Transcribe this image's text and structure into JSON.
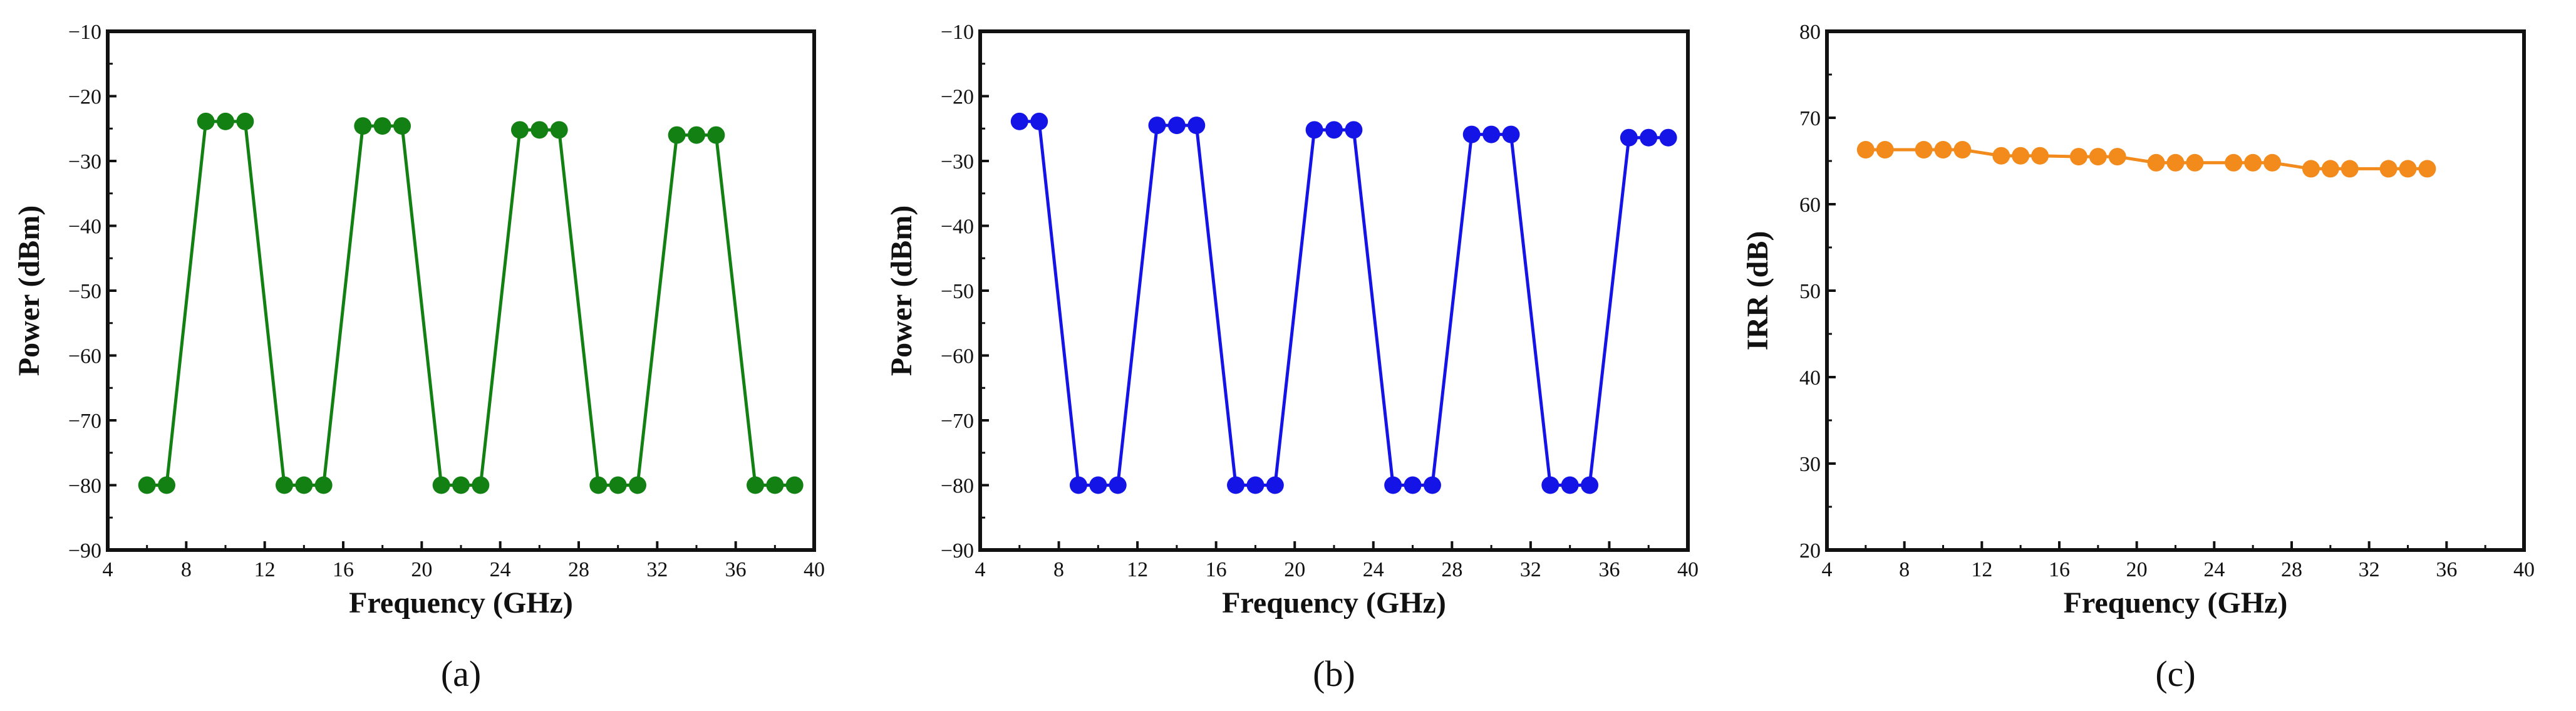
{
  "chart_data": [
    {
      "type": "line",
      "caption": "(a)",
      "xlabel": "Frequency (GHz)",
      "ylabel": "Power (dBm)",
      "xlim": [
        4,
        40
      ],
      "ylim": [
        -90,
        -10
      ],
      "xticks": [
        4,
        8,
        12,
        16,
        20,
        24,
        28,
        32,
        36,
        40
      ],
      "yticks": [
        -90,
        -80,
        -70,
        -60,
        -50,
        -40,
        -30,
        -20,
        -10
      ],
      "xtick_labels": [
        "4",
        "8",
        "12",
        "16",
        "20",
        "24",
        "28",
        "32",
        "36",
        "40"
      ],
      "ytick_labels": [
        "−90",
        "−80",
        "−70",
        "−60",
        "−50",
        "−40",
        "−30",
        "−20",
        "−10"
      ],
      "color": "#138013",
      "marker": "circle",
      "grid": false,
      "series": [
        {
          "x": [
            6,
            7,
            9,
            10,
            11,
            13,
            14,
            15,
            17,
            18,
            19,
            21,
            22,
            23,
            25,
            26,
            27,
            29,
            30,
            31,
            33,
            34,
            35,
            37,
            38,
            39
          ],
          "values": [
            -80,
            -80,
            -23.9,
            -23.9,
            -23.9,
            -80,
            -80,
            -80,
            -24.6,
            -24.6,
            -24.6,
            -80,
            -80,
            -80,
            -25.2,
            -25.2,
            -25.2,
            -80,
            -80,
            -80,
            -26.0,
            -26.0,
            -26.0,
            -80,
            -80,
            -80
          ]
        }
      ]
    },
    {
      "type": "line",
      "caption": "(b)",
      "xlabel": "Frequency (GHz)",
      "ylabel": "Power (dBm)",
      "xlim": [
        4,
        40
      ],
      "ylim": [
        -90,
        -10
      ],
      "xticks": [
        4,
        8,
        12,
        16,
        20,
        24,
        28,
        32,
        36,
        40
      ],
      "yticks": [
        -90,
        -80,
        -70,
        -60,
        -50,
        -40,
        -30,
        -20,
        -10
      ],
      "xtick_labels": [
        "4",
        "8",
        "12",
        "16",
        "20",
        "24",
        "28",
        "32",
        "36",
        "40"
      ],
      "ytick_labels": [
        "−90",
        "−80",
        "−70",
        "−60",
        "−50",
        "−40",
        "−30",
        "−20",
        "−10"
      ],
      "color": "#1414e6",
      "marker": "circle",
      "grid": false,
      "series": [
        {
          "x": [
            6,
            7,
            9,
            10,
            11,
            13,
            14,
            15,
            17,
            18,
            19,
            21,
            22,
            23,
            25,
            26,
            27,
            29,
            30,
            31,
            33,
            34,
            35,
            37,
            38,
            39
          ],
          "values": [
            -23.9,
            -23.9,
            -80,
            -80,
            -80,
            -24.5,
            -24.5,
            -24.5,
            -80,
            -80,
            -80,
            -25.2,
            -25.2,
            -25.2,
            -80,
            -80,
            -80,
            -25.9,
            -25.9,
            -25.9,
            -80,
            -80,
            -80,
            -26.4,
            -26.4,
            -26.4
          ]
        }
      ]
    },
    {
      "type": "line",
      "caption": "(c)",
      "xlabel": "Frequency (GHz)",
      "ylabel": "IRR (dB)",
      "xlim": [
        4,
        40
      ],
      "ylim": [
        20,
        80
      ],
      "xticks": [
        4,
        8,
        12,
        16,
        20,
        24,
        28,
        32,
        36,
        40
      ],
      "yticks": [
        20,
        30,
        40,
        50,
        60,
        70,
        80
      ],
      "xtick_labels": [
        "4",
        "8",
        "12",
        "16",
        "20",
        "24",
        "28",
        "32",
        "36",
        "40"
      ],
      "ytick_labels": [
        "20",
        "30",
        "40",
        "50",
        "60",
        "70",
        "80"
      ],
      "color": "#f28a1c",
      "marker": "circle",
      "grid": false,
      "series": [
        {
          "x": [
            6,
            7,
            9,
            10,
            11,
            13,
            14,
            15,
            17,
            18,
            19,
            21,
            22,
            23,
            25,
            26,
            27,
            29,
            30,
            31,
            33,
            34,
            35
          ],
          "values": [
            66.3,
            66.3,
            66.3,
            66.3,
            66.3,
            65.6,
            65.6,
            65.6,
            65.5,
            65.5,
            65.5,
            64.8,
            64.8,
            64.8,
            64.8,
            64.8,
            64.8,
            64.1,
            64.1,
            64.1,
            64.1,
            64.1,
            64.1
          ]
        }
      ]
    }
  ]
}
